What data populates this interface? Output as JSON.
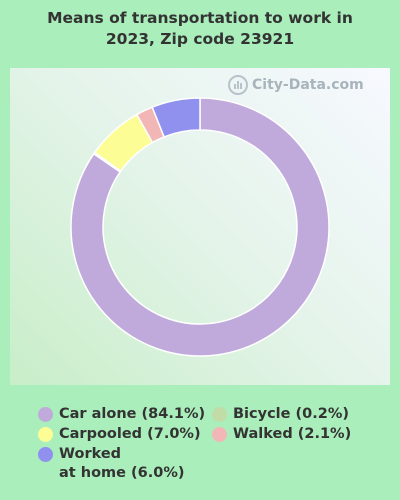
{
  "chart_data": {
    "type": "pie",
    "donut": true,
    "title": "Means of transportation to work in 2023, Zip code 23921",
    "title_lines": [
      "Means of transportation to work in",
      "2023, Zip code 23921"
    ],
    "slices": [
      {
        "label": "Car alone",
        "value": 84.1,
        "legend": "Car alone (84.1%)",
        "color": "#c0aadc"
      },
      {
        "label": "Carpooled",
        "value": 7.0,
        "legend": "Carpooled (7.0%)",
        "color": "#fdfd96"
      },
      {
        "label": "Bicycle",
        "value": 0.2,
        "legend": "Bicycle (0.2%)",
        "color": "#c2dca8"
      },
      {
        "label": "Walked",
        "value": 2.1,
        "legend": "Walked (2.1%)",
        "color": "#f3b6b6"
      },
      {
        "label": "Worked at home",
        "value": 6.0,
        "legend": "Worked\nat home (6.0%)",
        "color": "#9090ef"
      }
    ],
    "legend_placement": "bottom",
    "watermark": "City-Data.com"
  }
}
